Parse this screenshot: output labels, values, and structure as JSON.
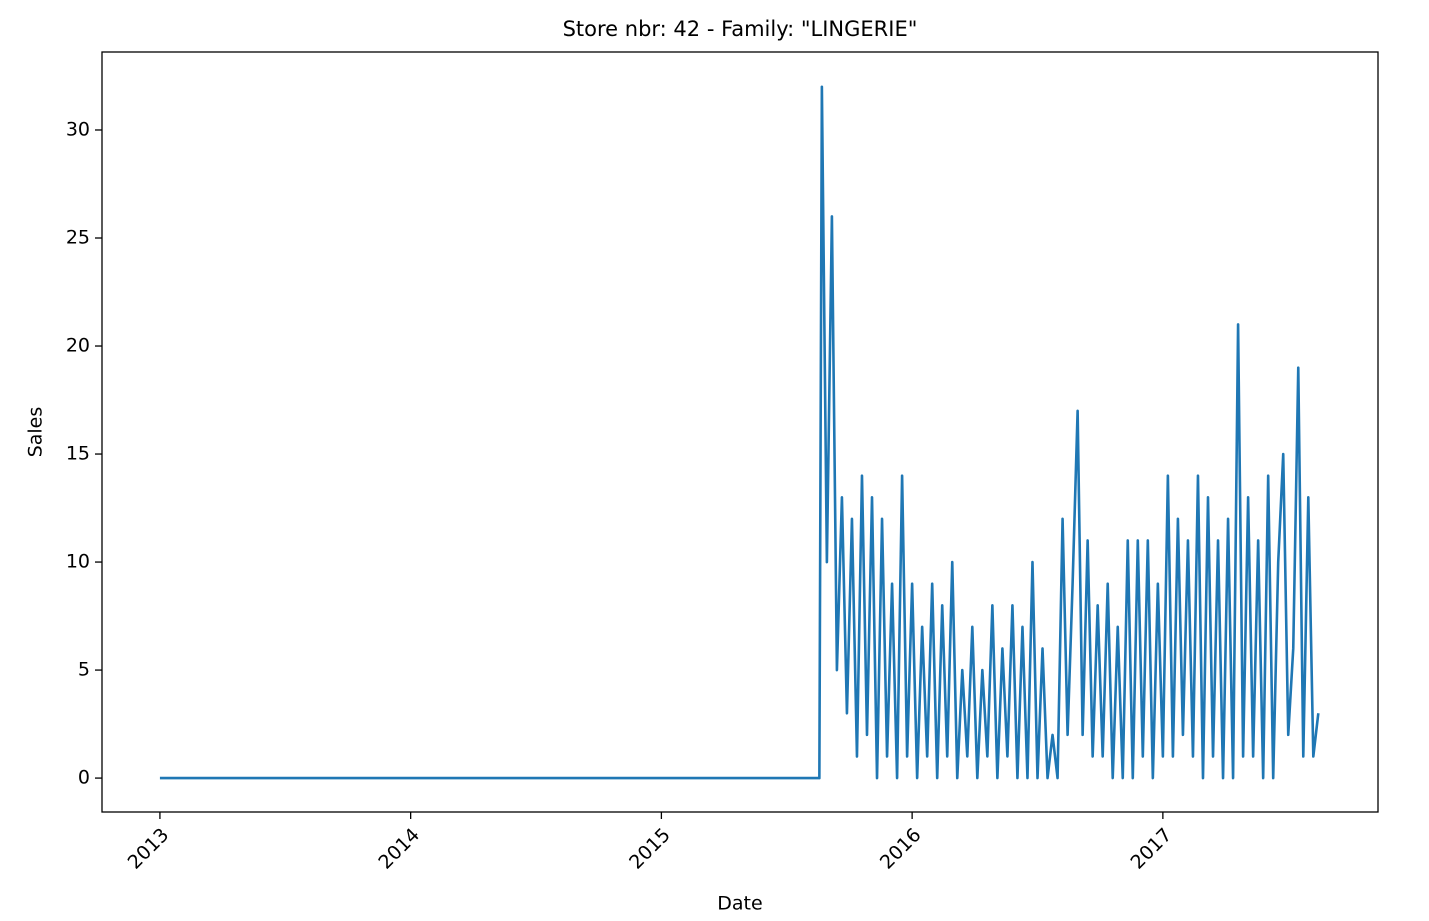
{
  "chart_data": {
    "type": "line",
    "title": "Store nbr: 42 - Family: \"LINGERIE\"",
    "x_label": "Date",
    "y_label": "Sales",
    "color": "#1f77b4",
    "xlim": [
      2012.769,
      2017.858
    ],
    "xticks": [
      2013,
      2014,
      2015,
      2016,
      2017
    ],
    "ylim": [
      -1.57,
      33.61
    ],
    "yticks": [
      0,
      5,
      10,
      15,
      20,
      25,
      30
    ],
    "x": [
      2013.0,
      2015.63,
      2015.64,
      2015.66,
      2015.68,
      2015.7,
      2015.72,
      2015.74,
      2015.76,
      2015.78,
      2015.8,
      2015.82,
      2015.84,
      2015.86,
      2015.88,
      2015.9,
      2015.92,
      2015.94,
      2015.96,
      2015.98,
      2016.0,
      2016.02,
      2016.04,
      2016.06,
      2016.08,
      2016.1,
      2016.12,
      2016.14,
      2016.16,
      2016.18,
      2016.2,
      2016.22,
      2016.24,
      2016.26,
      2016.28,
      2016.3,
      2016.32,
      2016.34,
      2016.36,
      2016.38,
      2016.4,
      2016.42,
      2016.44,
      2016.46,
      2016.48,
      2016.5,
      2016.52,
      2016.54,
      2016.56,
      2016.58,
      2016.6,
      2016.62,
      2016.64,
      2016.66,
      2016.68,
      2016.7,
      2016.72,
      2016.74,
      2016.76,
      2016.78,
      2016.8,
      2016.82,
      2016.84,
      2016.86,
      2016.88,
      2016.9,
      2016.92,
      2016.94,
      2016.96,
      2016.98,
      2017.0,
      2017.02,
      2017.04,
      2017.06,
      2017.08,
      2017.1,
      2017.12,
      2017.14,
      2017.16,
      2017.18,
      2017.2,
      2017.22,
      2017.24,
      2017.26,
      2017.28,
      2017.3,
      2017.32,
      2017.34,
      2017.36,
      2017.38,
      2017.4,
      2017.42,
      2017.44,
      2017.46,
      2017.48,
      2017.5,
      2017.52,
      2017.54,
      2017.56,
      2017.58,
      2017.6,
      2017.62
    ],
    "values": [
      0,
      0,
      32,
      10,
      26,
      5,
      13,
      3,
      12,
      1,
      14,
      2,
      13,
      0,
      12,
      1,
      9,
      0,
      14,
      1,
      9,
      0,
      7,
      1,
      9,
      0,
      8,
      1,
      10,
      0,
      5,
      1,
      7,
      0,
      5,
      1,
      8,
      0,
      6,
      1,
      8,
      0,
      7,
      0,
      10,
      0,
      6,
      0,
      2,
      0,
      12,
      2,
      9,
      17,
      2,
      11,
      1,
      8,
      1,
      9,
      0,
      7,
      0,
      11,
      0,
      11,
      1,
      11,
      0,
      9,
      1,
      14,
      1,
      12,
      2,
      11,
      1,
      14,
      0,
      13,
      1,
      11,
      0,
      12,
      0,
      21,
      1,
      13,
      1,
      11,
      0,
      14,
      0,
      10,
      15,
      2,
      6,
      19,
      1,
      13,
      1,
      3
    ]
  }
}
